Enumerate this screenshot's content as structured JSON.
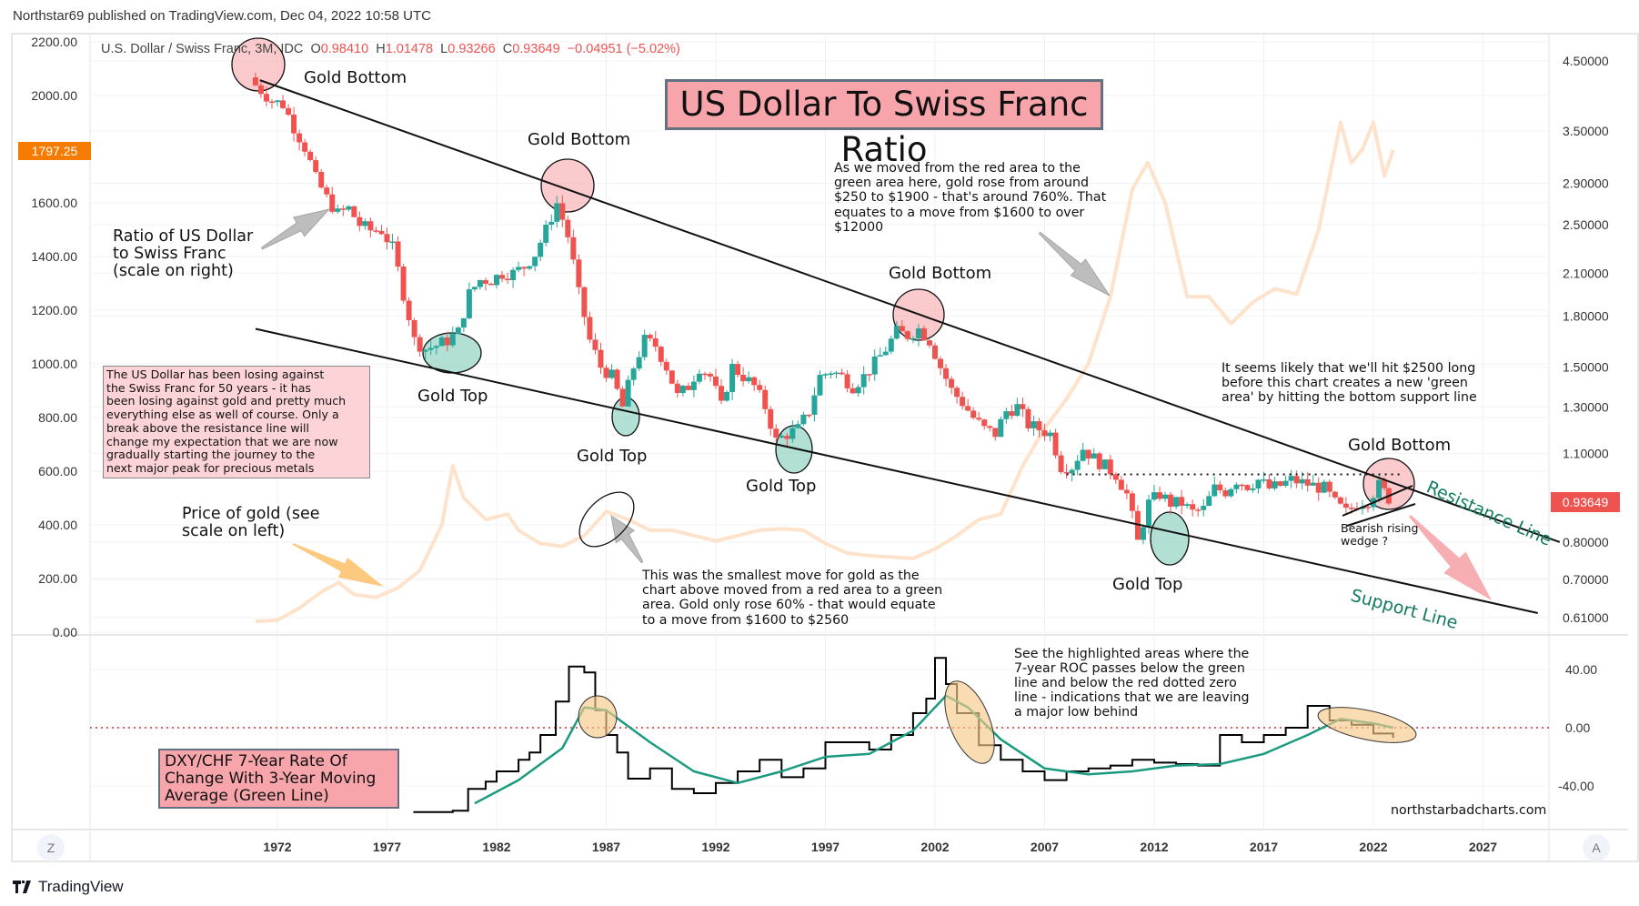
{
  "header": {
    "published": "Northstar69 published on TradingView.com, Dec 04, 2022 10:58 UTC"
  },
  "legend": {
    "symbol": "U.S. Dollar / Swiss Franc, 3M, IDC",
    "open_label": "O",
    "open": "0.98410",
    "high_label": "H",
    "high": "1.01478",
    "low_label": "L",
    "low": "0.93266",
    "close_label": "C",
    "close": "0.93649",
    "change": "−0.04951 (−5.02%)"
  },
  "colors": {
    "up": "#26a69a",
    "down": "#ef5350",
    "gold_line": "#fde2cc",
    "roc_line": "#000000",
    "roc_ma": "#1a9b80",
    "gold_badge": "#f57c00",
    "last_badge": "#ef5350",
    "zero_line": "#d32f2f",
    "green_text": "#137a62"
  },
  "badges": {
    "gold_last": "1797.25",
    "ratio_last": "0.93649"
  },
  "annotations": {
    "title": "US Dollar To Swiss Franc Ratio",
    "gold_bottom": "Gold Bottom",
    "gold_top": "Gold Top",
    "ratio_label": "Ratio of US Dollar\nto Swiss Franc\n(scale on right)",
    "gold_price_label": "Price of gold (see\nscale on left)",
    "pink_note": "The US Dollar has been losing against\nthe Swiss Franc for 50 years - it has\nbeen losing against gold and pretty much\neverything else as well of course. Only a\nbreak above the resistance line will\nchange my expectation that we are now\ngradually starting the journey to the\nnext major peak for precious metals",
    "move_note": "As we moved from the red area to the\ngreen area here, gold rose from around\n$250 to $1900 - that's around 760%. That\nequates to a move from $1600 to over\n$12000",
    "smallest_move_note": "This was the smallest move for gold as the\nchart above moved from a red area to a green\narea. Gold only rose 60% - that would equate\nto a move from $1600 to $2560",
    "likely_note": "It seems likely that we'll hit $2500 long\nbefore this chart creates a new 'green\narea' by hitting the bottom support line",
    "wedge_note": "Bearish rising\nwedge ?",
    "resistance_line": "Resistance Line",
    "support_line": "Support Line",
    "roc_box": "DXY/CHF 7-Year Rate Of\nChange With 3-Year Moving\nAverage (Green Line)",
    "roc_note": "See the highlighted areas where the\n7-year ROC passes below the green\nline and below the red dotted zero\nline - indications that we are leaving\na major low behind",
    "watermark": "northstarbadcharts.com"
  },
  "corner_buttons": {
    "left": "Z",
    "right": "A"
  },
  "footer": {
    "brand": "TradingView"
  },
  "chart_data": [
    {
      "type": "candlestick",
      "title": "U.S. Dollar / Swiss Franc, 3M, IDC",
      "scale": "log",
      "right_axis_ticks": [
        "4.50000",
        "3.50000",
        "2.90000",
        "2.50000",
        "2.10000",
        "1.80000",
        "1.50000",
        "1.30000",
        "1.10000",
        "0.80000",
        "0.70000",
        "0.61000"
      ],
      "right_axis_values": [
        4.5,
        3.5,
        2.9,
        2.5,
        2.1,
        1.8,
        1.5,
        1.3,
        1.1,
        0.8,
        0.7,
        0.61
      ],
      "x_ticks": [
        "1972",
        "1977",
        "1982",
        "1987",
        "1992",
        "1997",
        "2002",
        "2007",
        "2012",
        "2017",
        "2022",
        "2027"
      ],
      "x_range": [
        1964,
        2031
      ],
      "approx_close_path": [
        [
          1971.0,
          4.2
        ],
        [
          1971.5,
          4.05
        ],
        [
          1972.0,
          3.9
        ],
        [
          1972.5,
          3.85
        ],
        [
          1973.0,
          3.55
        ],
        [
          1973.5,
          3.3
        ],
        [
          1974.0,
          2.95
        ],
        [
          1974.5,
          2.75
        ],
        [
          1975.0,
          2.6
        ],
        [
          1975.5,
          2.65
        ],
        [
          1976.0,
          2.5
        ],
        [
          1976.5,
          2.45
        ],
        [
          1977.0,
          2.45
        ],
        [
          1977.5,
          2.3
        ],
        [
          1978.0,
          1.95
        ],
        [
          1978.5,
          1.65
        ],
        [
          1979.0,
          1.6
        ],
        [
          1979.5,
          1.62
        ],
        [
          1980.0,
          1.65
        ],
        [
          1980.5,
          1.7
        ],
        [
          1981.0,
          1.95
        ],
        [
          1981.5,
          2.05
        ],
        [
          1982.0,
          2.05
        ],
        [
          1982.5,
          2.1
        ],
        [
          1983.0,
          2.1
        ],
        [
          1983.5,
          2.15
        ],
        [
          1984.0,
          2.25
        ],
        [
          1984.5,
          2.45
        ],
        [
          1985.0,
          2.7
        ],
        [
          1985.5,
          2.4
        ],
        [
          1986.0,
          1.95
        ],
        [
          1986.5,
          1.65
        ],
        [
          1987.0,
          1.5
        ],
        [
          1987.5,
          1.45
        ],
        [
          1988.0,
          1.3
        ],
        [
          1988.5,
          1.5
        ],
        [
          1989.0,
          1.65
        ],
        [
          1989.5,
          1.62
        ],
        [
          1990.0,
          1.5
        ],
        [
          1990.5,
          1.35
        ],
        [
          1991.0,
          1.4
        ],
        [
          1991.5,
          1.5
        ],
        [
          1992.0,
          1.45
        ],
        [
          1992.5,
          1.3
        ],
        [
          1993.0,
          1.5
        ],
        [
          1993.5,
          1.45
        ],
        [
          1994.0,
          1.4
        ],
        [
          1994.5,
          1.3
        ],
        [
          1995.0,
          1.15
        ],
        [
          1995.5,
          1.18
        ],
        [
          1996.0,
          1.2
        ],
        [
          1996.5,
          1.28
        ],
        [
          1997.0,
          1.45
        ],
        [
          1997.5,
          1.48
        ],
        [
          1998.0,
          1.45
        ],
        [
          1998.5,
          1.4
        ],
        [
          1999.0,
          1.45
        ],
        [
          1999.5,
          1.52
        ],
        [
          2000.0,
          1.6
        ],
        [
          2000.5,
          1.7
        ],
        [
          2001.0,
          1.68
        ],
        [
          2001.5,
          1.72
        ],
        [
          2002.0,
          1.65
        ],
        [
          2002.5,
          1.5
        ],
        [
          2003.0,
          1.38
        ],
        [
          2003.5,
          1.32
        ],
        [
          2004.0,
          1.25
        ],
        [
          2004.5,
          1.2
        ],
        [
          2005.0,
          1.18
        ],
        [
          2005.5,
          1.28
        ],
        [
          2006.0,
          1.3
        ],
        [
          2006.5,
          1.22
        ],
        [
          2007.0,
          1.2
        ],
        [
          2007.5,
          1.18
        ],
        [
          2008.0,
          1.05
        ],
        [
          2008.5,
          1.05
        ],
        [
          2009.0,
          1.12
        ],
        [
          2009.5,
          1.08
        ],
        [
          2010.0,
          1.05
        ],
        [
          2010.5,
          1.02
        ],
        [
          2011.0,
          0.95
        ],
        [
          2011.5,
          0.8
        ],
        [
          2012.0,
          0.92
        ],
        [
          2012.5,
          0.95
        ],
        [
          2013.0,
          0.92
        ],
        [
          2013.5,
          0.92
        ],
        [
          2014.0,
          0.89
        ],
        [
          2014.5,
          0.9
        ],
        [
          2015.0,
          0.97
        ],
        [
          2015.5,
          0.96
        ],
        [
          2016.0,
          1.0
        ],
        [
          2016.5,
          0.98
        ],
        [
          2017.0,
          1.0
        ],
        [
          2017.5,
          0.97
        ],
        [
          2018.0,
          0.98
        ],
        [
          2018.5,
          1.0
        ],
        [
          2019.0,
          0.99
        ],
        [
          2019.5,
          0.98
        ],
        [
          2020.0,
          0.97
        ],
        [
          2020.5,
          0.92
        ],
        [
          2021.0,
          0.89
        ],
        [
          2021.5,
          0.92
        ],
        [
          2022.0,
          0.93
        ],
        [
          2022.5,
          0.98
        ],
        [
          2022.9,
          0.93649
        ]
      ],
      "trendlines": {
        "resistance": {
          "label": "Resistance Line",
          "from": [
            1971.2,
            4.2
          ],
          "to": [
            2030.5,
            0.8
          ]
        },
        "support": {
          "label": "Support Line",
          "from": [
            1971.0,
            1.72
          ],
          "to": [
            2029.5,
            0.62
          ]
        },
        "range_top_dotted": {
          "from": [
            2008.0,
            1.02
          ],
          "to": [
            2023.2,
            1.02
          ]
        }
      }
    },
    {
      "type": "line",
      "title": "Price of gold (see scale on left)",
      "left_axis_ticks": [
        "2200.00",
        "2000.00",
        "1600.00",
        "1400.00",
        "1200.00",
        "1000.00",
        "800.00",
        "600.00",
        "400.00",
        "200.00",
        "0.00"
      ],
      "ylim": [
        0,
        2200
      ],
      "last_value": 1797.25,
      "x": [
        1971,
        1972,
        1973,
        1974,
        1974.8,
        1975.5,
        1976.5,
        1977.5,
        1978.5,
        1979.5,
        1980.0,
        1980.5,
        1981.5,
        1982.5,
        1983.0,
        1984.0,
        1985.0,
        1986.0,
        1987.0,
        1988.0,
        1989.0,
        1990.0,
        1991.0,
        1992.0,
        1993.0,
        1994.0,
        1995.0,
        1996.0,
        1997.0,
        1998.0,
        1999.0,
        2000.0,
        2001.0,
        2002.0,
        2003.0,
        2004.0,
        2005.0,
        2006.0,
        2007.0,
        2008.0,
        2009.0,
        2010.0,
        2011.0,
        2011.7,
        2012.5,
        2013.5,
        2014.5,
        2015.5,
        2016.5,
        2017.5,
        2018.5,
        2019.5,
        2020.5,
        2021.0,
        2021.5,
        2022.0,
        2022.5,
        2022.9
      ],
      "values": [
        40,
        45,
        90,
        150,
        185,
        140,
        130,
        165,
        230,
        400,
        620,
        500,
        420,
        440,
        380,
        330,
        320,
        360,
        450,
        420,
        380,
        380,
        360,
        340,
        360,
        380,
        385,
        380,
        330,
        295,
        285,
        280,
        275,
        310,
        360,
        420,
        440,
        620,
        760,
        870,
        1000,
        1250,
        1650,
        1750,
        1600,
        1250,
        1250,
        1150,
        1230,
        1280,
        1260,
        1500,
        1900,
        1750,
        1800,
        1900,
        1700,
        1797.25
      ]
    },
    {
      "type": "line",
      "title": "DXY/CHF 7-Year Rate Of Change With 3-Year Moving Average (Green Line)",
      "right_axis_ticks": [
        "40.00",
        "0.00",
        "-40.00"
      ],
      "ylim": [
        -60,
        55
      ],
      "zero_line": 0,
      "roc": {
        "x": [
          1978.2,
          1979,
          1980,
          1980.7,
          1981.5,
          1982,
          1983,
          1983.5,
          1984,
          1984.7,
          1985.3,
          1986,
          1986.5,
          1987,
          1987.5,
          1988,
          1989,
          1990,
          1991,
          1992,
          1993,
          1994,
          1995,
          1996,
          1997,
          1998,
          1999,
          2000,
          2001,
          2001.6,
          2002,
          2002.5,
          2003,
          2004,
          2005,
          2006,
          2007,
          2008,
          2009,
          2010,
          2011,
          2012,
          2013,
          2014,
          2015,
          2016,
          2017,
          2018,
          2019,
          2020,
          2021,
          2022,
          2022.9
        ],
        "values": [
          -58,
          -58,
          -57,
          -42,
          -37,
          -30,
          -22,
          -17,
          -5,
          18,
          42,
          38,
          12,
          -5,
          -17,
          -35,
          -28,
          -42,
          -45,
          -38,
          -30,
          -22,
          -34,
          -28,
          -10,
          -10,
          -15,
          -5,
          10,
          20,
          48,
          30,
          10,
          -12,
          -22,
          -30,
          -36,
          -30,
          -28,
          -26,
          -22,
          -24,
          -25,
          -26,
          -5,
          -10,
          -5,
          0,
          15,
          5,
          2,
          -4,
          -7
        ]
      },
      "moving_average": {
        "x": [
          1981,
          1983,
          1985,
          1986,
          1987,
          1989,
          1991,
          1993,
          1995,
          1997,
          1999,
          2001,
          2002.5,
          2003.5,
          2005,
          2007,
          2009,
          2011,
          2013,
          2015,
          2017,
          2019,
          2020.5,
          2022,
          2022.9
        ],
        "values": [
          -52,
          -36,
          -14,
          14,
          12,
          -10,
          -30,
          -38,
          -30,
          -20,
          -18,
          -2,
          22,
          14,
          -8,
          -28,
          -32,
          -30,
          -26,
          -25,
          -18,
          -5,
          6,
          3,
          0
        ]
      }
    }
  ]
}
